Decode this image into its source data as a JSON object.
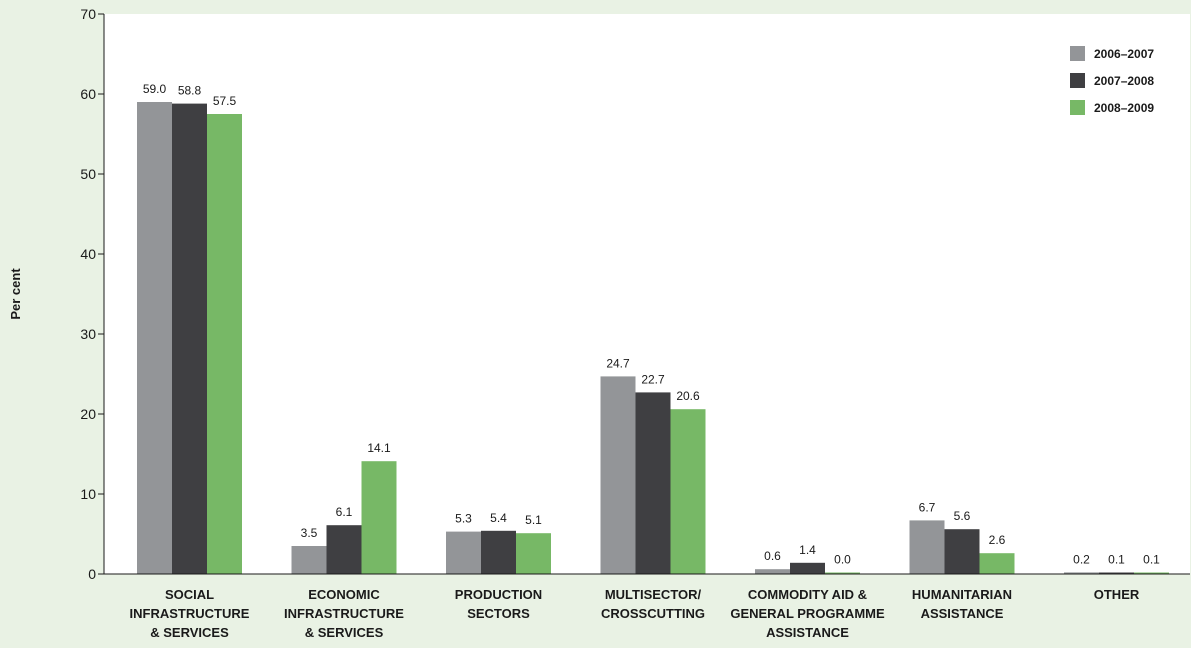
{
  "chart_data": {
    "type": "bar",
    "ylabel": "Per cent",
    "ylim": [
      0,
      70
    ],
    "yticks": [
      0,
      10,
      20,
      30,
      40,
      50,
      60,
      70
    ],
    "legend_position": "top-right",
    "categories": [
      [
        "SOCIAL",
        "INFRASTRUCTURE",
        "& SERVICES"
      ],
      [
        "ECONOMIC",
        "INFRASTRUCTURE",
        "& SERVICES"
      ],
      [
        "PRODUCTION",
        "SECTORS"
      ],
      [
        "MULTISECTOR/",
        "CROSSCUTTING"
      ],
      [
        "COMMODITY AID &",
        "GENERAL PROGRAMME",
        "ASSISTANCE"
      ],
      [
        "HUMANITARIAN",
        "ASSISTANCE"
      ],
      [
        "OTHER"
      ]
    ],
    "series": [
      {
        "name": "2006–2007",
        "color": "#939598",
        "values": [
          59.0,
          3.5,
          5.3,
          24.7,
          0.6,
          6.7,
          0.2
        ],
        "labels": [
          "59.0",
          "3.5",
          "5.3",
          "24.7",
          "0.6",
          "6.7",
          "0.2"
        ]
      },
      {
        "name": "2007–2008",
        "color": "#3f3f42",
        "values": [
          58.8,
          6.1,
          5.4,
          22.7,
          1.4,
          5.6,
          0.1
        ],
        "labels": [
          "58.8",
          "6.1",
          "5.4",
          "22.7",
          "1.4",
          "5.6",
          "0.1"
        ]
      },
      {
        "name": "2008–2009",
        "color": "#77b866",
        "values": [
          57.5,
          14.1,
          5.1,
          20.6,
          0.0,
          2.6,
          0.1
        ],
        "labels": [
          "57.5",
          "14.1",
          "5.1",
          "20.6",
          "0.0",
          "2.6",
          "0.1"
        ]
      }
    ]
  }
}
